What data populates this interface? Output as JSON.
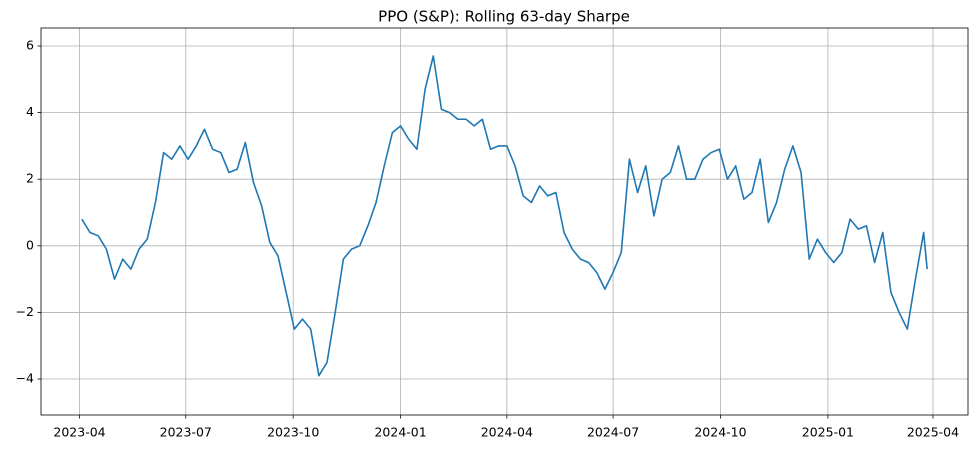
{
  "chart_data": {
    "type": "line",
    "title": "PPO (S&P): Rolling 63-day Sharpe",
    "x": [
      "2023-04-03",
      "2023-04-10",
      "2023-04-17",
      "2023-04-24",
      "2023-05-01",
      "2023-05-08",
      "2023-05-15",
      "2023-05-22",
      "2023-05-29",
      "2023-06-05",
      "2023-06-12",
      "2023-06-19",
      "2023-06-26",
      "2023-07-03",
      "2023-07-10",
      "2023-07-17",
      "2023-07-24",
      "2023-07-31",
      "2023-08-07",
      "2023-08-14",
      "2023-08-21",
      "2023-08-28",
      "2023-09-04",
      "2023-09-11",
      "2023-09-18",
      "2023-09-25",
      "2023-10-02",
      "2023-10-09",
      "2023-10-16",
      "2023-10-23",
      "2023-10-30",
      "2023-11-06",
      "2023-11-13",
      "2023-11-20",
      "2023-11-27",
      "2023-12-04",
      "2023-12-11",
      "2023-12-18",
      "2023-12-25",
      "2024-01-01",
      "2024-01-08",
      "2024-01-15",
      "2024-01-22",
      "2024-01-29",
      "2024-02-05",
      "2024-02-12",
      "2024-02-19",
      "2024-02-26",
      "2024-03-04",
      "2024-03-11",
      "2024-03-18",
      "2024-03-25",
      "2024-04-01",
      "2024-04-08",
      "2024-04-15",
      "2024-04-22",
      "2024-04-29",
      "2024-05-06",
      "2024-05-13",
      "2024-05-20",
      "2024-05-27",
      "2024-06-03",
      "2024-06-10",
      "2024-06-17",
      "2024-06-24",
      "2024-07-01",
      "2024-07-08",
      "2024-07-15",
      "2024-07-22",
      "2024-07-29",
      "2024-08-05",
      "2024-08-12",
      "2024-08-19",
      "2024-08-26",
      "2024-09-02",
      "2024-09-09",
      "2024-09-16",
      "2024-09-23",
      "2024-09-30",
      "2024-10-07",
      "2024-10-14",
      "2024-10-21",
      "2024-10-28",
      "2024-11-04",
      "2024-11-11",
      "2024-11-18",
      "2024-11-25",
      "2024-12-02",
      "2024-12-09",
      "2024-12-16",
      "2024-12-23",
      "2024-12-30",
      "2025-01-06",
      "2025-01-13",
      "2025-01-20",
      "2025-01-27",
      "2025-02-03",
      "2025-02-10",
      "2025-02-17",
      "2025-02-24",
      "2025-03-03",
      "2025-03-10",
      "2025-03-17",
      "2025-03-24",
      "2025-03-27"
    ],
    "series": [
      {
        "name": "Rolling 63-day Sharpe",
        "color": "#1f77b4",
        "values": [
          0.8,
          0.4,
          0.3,
          -0.1,
          -1.0,
          -0.4,
          -0.7,
          -0.1,
          0.2,
          1.3,
          2.8,
          2.6,
          3.0,
          2.6,
          3.0,
          3.5,
          2.9,
          2.8,
          2.2,
          2.3,
          3.1,
          1.9,
          1.2,
          0.1,
          -0.3,
          -1.4,
          -2.5,
          -2.2,
          -2.5,
          -3.9,
          -3.5,
          -2.0,
          -0.4,
          -0.1,
          0.0,
          0.6,
          1.3,
          2.4,
          3.4,
          3.6,
          3.2,
          2.9,
          4.7,
          5.7,
          4.1,
          4.0,
          3.8,
          3.8,
          3.6,
          3.8,
          2.9,
          3.0,
          3.0,
          2.4,
          1.5,
          1.3,
          1.8,
          1.5,
          1.6,
          0.4,
          -0.1,
          -0.4,
          -0.5,
          -0.8,
          -1.3,
          -0.8,
          -0.2,
          2.6,
          1.6,
          2.4,
          0.9,
          2.0,
          2.2,
          3.0,
          2.0,
          2.0,
          2.6,
          2.8,
          2.9,
          2.0,
          2.4,
          1.4,
          1.6,
          2.6,
          0.7,
          1.3,
          2.3,
          3.0,
          2.2,
          -0.4,
          0.2,
          -0.2,
          -0.5,
          -0.2,
          0.8,
          0.5,
          0.6,
          -0.5,
          0.4,
          -1.4,
          -2.0,
          -2.5,
          -1.0,
          0.4,
          -0.7
        ]
      }
    ],
    "xlim": [
      "2023-02-27",
      "2025-05-01"
    ],
    "xticks": [
      {
        "value": "2023-04-01",
        "label": "2023-04"
      },
      {
        "value": "2023-07-01",
        "label": "2023-07"
      },
      {
        "value": "2023-10-01",
        "label": "2023-10"
      },
      {
        "value": "2024-01-01",
        "label": "2024-01"
      },
      {
        "value": "2024-04-01",
        "label": "2024-04"
      },
      {
        "value": "2024-07-01",
        "label": "2024-07"
      },
      {
        "value": "2024-10-01",
        "label": "2024-10"
      },
      {
        "value": "2025-01-01",
        "label": "2025-01"
      },
      {
        "value": "2025-04-01",
        "label": "2025-04"
      }
    ],
    "ylim": [
      -5.08,
      6.54
    ],
    "yticks": [
      {
        "value": -4,
        "label": "−4"
      },
      {
        "value": -2,
        "label": "−2"
      },
      0,
      2,
      4,
      6
    ],
    "grid": true
  }
}
